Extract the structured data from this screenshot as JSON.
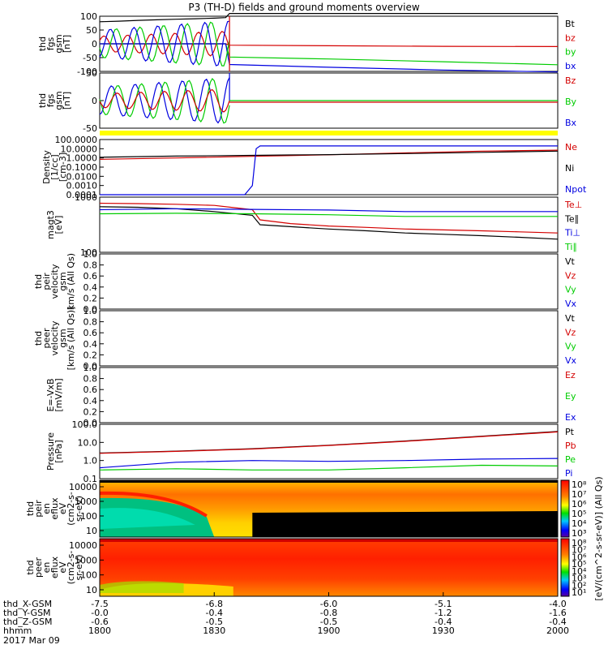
{
  "title": "P3 (TH-D) fields and ground moments overview",
  "date": "2017 Mar 09",
  "colors": {
    "black": "#000000",
    "red": "#d40000",
    "green": "#00cc00",
    "blue": "#0000e0",
    "yellow": "#ffff00"
  },
  "chart_data": [
    {
      "type": "line",
      "id": "fgs_gsm",
      "ylabel": [
        "thd",
        "fgs",
        "gsm",
        "[nT]"
      ],
      "yticks": [
        "100",
        "50",
        "0",
        "-50",
        "-100"
      ],
      "ylim": [
        -100,
        100
      ],
      "series": [
        {
          "name": "Bt",
          "color": "black",
          "x": [
            0,
            5,
            10,
            15,
            20,
            25,
            30,
            33,
            34,
            40,
            50,
            60,
            70,
            80,
            90,
            100,
            110,
            120
          ],
          "y": [
            80,
            82,
            85,
            87,
            89,
            91,
            93,
            95,
            110,
            110,
            110,
            110,
            110,
            110,
            110,
            110,
            110,
            110
          ]
        },
        {
          "name": "bz",
          "color": "red",
          "x": [
            0,
            33,
            34,
            60,
            90,
            120
          ],
          "y": [
            0,
            0,
            -5,
            -7,
            -9,
            -10
          ]
        },
        {
          "name": "by",
          "color": "green",
          "x": [
            0,
            33,
            34,
            60,
            90,
            120
          ],
          "y": [
            0,
            0,
            -48,
            -55,
            -65,
            -76
          ]
        },
        {
          "name": "bx",
          "color": "blue",
          "x": [
            0,
            33,
            34,
            60,
            90,
            120
          ],
          "y": [
            0,
            0,
            -75,
            -85,
            -95,
            -102
          ]
        }
      ]
    },
    {
      "type": "line",
      "id": "fgs_gsm2",
      "ylabel": [
        "thd",
        "fgs",
        "gsm",
        "[nT]"
      ],
      "yticks": [
        "50",
        "0",
        "-50"
      ],
      "ylim": [
        -100,
        100
      ],
      "series": [
        {
          "name": "Bz",
          "color": "red"
        },
        {
          "name": "By",
          "color": "green"
        },
        {
          "name": "Bx",
          "color": "blue"
        }
      ]
    },
    {
      "type": "line",
      "id": "density",
      "log": true,
      "ylabel": [
        "Density",
        "[1/cc]",
        "[cm-3]"
      ],
      "yticks": [
        "100.0000",
        "10.0000",
        "1.0000",
        "0.1000",
        "0.0100",
        "0.0010",
        "0.0001"
      ],
      "ylim": [
        0.0001,
        100
      ],
      "series": [
        {
          "name": "Ne",
          "color": "red",
          "x": [
            0,
            20,
            40,
            50,
            60,
            80,
            100,
            120
          ],
          "y": [
            0.7,
            1.0,
            1.5,
            1.8,
            2.2,
            3.5,
            5.5,
            7
          ]
        },
        {
          "name": "Ni",
          "color": "black",
          "x": [
            0,
            20,
            40,
            50,
            60,
            80,
            100,
            120
          ],
          "y": [
            1.2,
            1.6,
            1.9,
            2.1,
            2.3,
            3.0,
            4.0,
            5.5
          ]
        },
        {
          "name": "Npot",
          "color": "blue",
          "x": [
            0,
            30,
            35,
            38,
            40,
            41,
            42,
            48,
            49,
            120
          ],
          "y": [
            0.0001,
            0.0001,
            0.0001,
            0.0001,
            0.001,
            10,
            20,
            20,
            20,
            20
          ]
        }
      ]
    },
    {
      "type": "line",
      "id": "temp",
      "log": true,
      "ylabel": [
        "magt3",
        "[eV]"
      ],
      "yticks": [
        "1000",
        "100"
      ],
      "ylim": [
        100,
        10000
      ],
      "series": [
        {
          "name": "Te⊥",
          "color": "red",
          "x": [
            0,
            10,
            20,
            30,
            40,
            42,
            50,
            60,
            70,
            80,
            90,
            100,
            110,
            120
          ],
          "y": [
            6000,
            5800,
            5500,
            5000,
            3500,
            1500,
            1100,
            900,
            800,
            700,
            650,
            600,
            550,
            500
          ]
        },
        {
          "name": "Te∥",
          "color": "black",
          "x": [
            0,
            10,
            20,
            30,
            40,
            42,
            50,
            60,
            70,
            80,
            90,
            100,
            110,
            120
          ],
          "y": [
            4500,
            4300,
            3800,
            3000,
            2200,
            1000,
            850,
            700,
            600,
            500,
            450,
            400,
            350,
            300
          ]
        },
        {
          "name": "Ti⊥",
          "color": "blue",
          "x": [
            0,
            20,
            40,
            60,
            80,
            100,
            120
          ],
          "y": [
            3500,
            3800,
            3600,
            3400,
            3000,
            3000,
            3000
          ]
        },
        {
          "name": "Ti∥",
          "color": "green",
          "x": [
            0,
            20,
            40,
            60,
            80,
            100,
            120
          ],
          "y": [
            2500,
            2600,
            2500,
            2300,
            2000,
            2000,
            2000
          ]
        }
      ]
    },
    {
      "type": "line",
      "id": "vel_i",
      "ylabel": [
        "thd",
        "peir",
        "velocity",
        "gsm",
        "km/s (All Qs)"
      ],
      "yticks": [
        "1.0",
        "0.8",
        "0.6",
        "0.4",
        "0.2",
        "0.0"
      ],
      "ylim": [
        0,
        1
      ],
      "series": [
        {
          "name": "Vt",
          "color": "black"
        },
        {
          "name": "Vz",
          "color": "red"
        },
        {
          "name": "Vy",
          "color": "green"
        },
        {
          "name": "Vx",
          "color": "blue"
        }
      ]
    },
    {
      "type": "line",
      "id": "vel_e",
      "ylabel": [
        "thd",
        "peer",
        "velocity",
        "gsm",
        "[km/s (All Qs)]"
      ],
      "yticks": [
        "1.0",
        "0.8",
        "0.6",
        "0.4",
        "0.2",
        "0.0"
      ],
      "ylim": [
        0,
        1
      ],
      "series": [
        {
          "name": "Vt",
          "color": "black"
        },
        {
          "name": "Vz",
          "color": "red"
        },
        {
          "name": "Vy",
          "color": "green"
        },
        {
          "name": "Vx",
          "color": "blue"
        }
      ]
    },
    {
      "type": "line",
      "id": "efield",
      "ylabel": [
        "E=-VxB",
        "[mV/m]"
      ],
      "yticks": [
        "1.0",
        "0.8",
        "0.6",
        "0.4",
        "0.2",
        "0.0"
      ],
      "ylim": [
        0,
        1
      ],
      "series": [
        {
          "name": "Ez",
          "color": "red"
        },
        {
          "name": "Ey",
          "color": "green"
        },
        {
          "name": "Ex",
          "color": "blue"
        }
      ]
    },
    {
      "type": "line",
      "id": "pressure",
      "log": true,
      "ylabel": [
        "Pressure",
        "[nPa]"
      ],
      "yticks": [
        "100.0",
        "10.0",
        "1.0",
        "0.1"
      ],
      "ylim": [
        0.1,
        100
      ],
      "series": [
        {
          "name": "Pt",
          "color": "black",
          "x": [
            0,
            20,
            40,
            60,
            80,
            100,
            120
          ],
          "y": [
            2.6,
            3.3,
            4.5,
            7,
            12,
            22,
            40
          ]
        },
        {
          "name": "Pb",
          "color": "red",
          "x": [
            0,
            20,
            40,
            60,
            80,
            100,
            120
          ],
          "y": [
            2.5,
            3.2,
            4.3,
            6.8,
            11.5,
            21,
            38
          ]
        },
        {
          "name": "Pe",
          "color": "green",
          "x": [
            0,
            20,
            40,
            60,
            80,
            100,
            120
          ],
          "y": [
            0.3,
            0.35,
            0.3,
            0.3,
            0.4,
            0.55,
            0.5
          ]
        },
        {
          "name": "Pi",
          "color": "blue",
          "x": [
            0,
            20,
            40,
            60,
            80,
            100,
            120
          ],
          "y": [
            0.4,
            0.8,
            1.0,
            0.9,
            1.0,
            1.2,
            1.3
          ]
        }
      ]
    },
    {
      "type": "heatmap",
      "id": "eflux_i",
      "ylabel": [
        "thd",
        "peir",
        "en",
        "eflux",
        "eV",
        "(cm2-s-",
        "sr-eV)"
      ],
      "yticks": [
        "10000",
        "1000",
        "100",
        "10"
      ]
    },
    {
      "type": "heatmap",
      "id": "eflux_e",
      "ylabel": [
        "thd",
        "peer",
        "en",
        "eflux",
        "eV",
        "(cm2-s-",
        "sr-eV)"
      ],
      "yticks": [
        "10000",
        "1000",
        "100",
        "10"
      ]
    }
  ],
  "colorbar": {
    "ticks_top": [
      "10⁸",
      "10⁷",
      "10⁶",
      "10⁵",
      "10⁴",
      "10³"
    ],
    "ticks_bottom": [
      "10⁸",
      "10⁷",
      "10⁶",
      "10⁵",
      "10⁴",
      "10³",
      "10²",
      "10¹"
    ],
    "label": "[eV/(cm^2-s-sr-eV)] (All Qs)"
  },
  "xaxis": {
    "rows": [
      {
        "label": "thd_X-GSM",
        "values": [
          "-7.5",
          "-6.8",
          "-6.0",
          "-5.1",
          "-4.0"
        ]
      },
      {
        "label": "thd_Y-GSM",
        "values": [
          "-0.0",
          "-0.4",
          "-0.8",
          "-1.2",
          "-1.6"
        ]
      },
      {
        "label": "thd_Z-GSM",
        "values": [
          "-0.6",
          "-0.5",
          "-0.5",
          "-0.4",
          "-0.4"
        ]
      },
      {
        "label": "hhmm",
        "values": [
          "1800",
          "1830",
          "1900",
          "1930",
          "2000"
        ]
      }
    ]
  }
}
